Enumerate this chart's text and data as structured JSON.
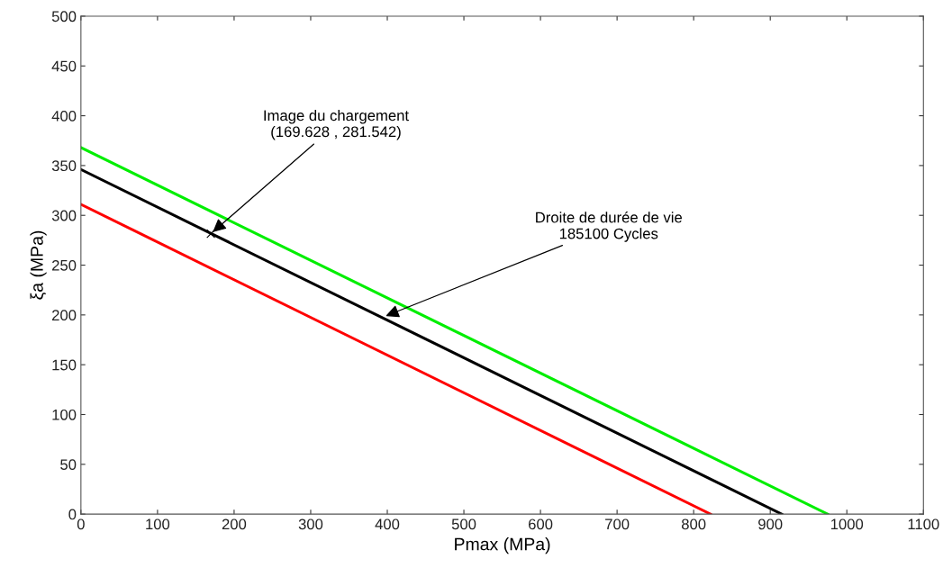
{
  "chart_data": {
    "type": "line",
    "xlabel": "Pmax (MPa)",
    "ylabel": "ξa (MPa)",
    "xlim": [
      0,
      1100
    ],
    "xticks": [
      0,
      100,
      200,
      300,
      400,
      500,
      600,
      700,
      800,
      900,
      1000,
      1100
    ],
    "ylim": [
      0,
      500
    ],
    "yticks": [
      0,
      50,
      100,
      150,
      200,
      250,
      300,
      350,
      400,
      450,
      500
    ],
    "grid": false,
    "legend": false,
    "series": [
      {
        "color": "#00ee00",
        "x": [
          0,
          975
        ],
        "values": [
          368,
          0
        ]
      },
      {
        "color": "#000000",
        "x": [
          0,
          915
        ],
        "values": [
          346,
          0
        ]
      },
      {
        "color": "#ff0000",
        "x": [
          0,
          822
        ],
        "values": [
          311,
          0
        ]
      },
      {
        "type": "scatter",
        "marker": "cross",
        "color": "#000000",
        "x": [
          169.628
        ],
        "values": [
          281.542
        ]
      }
    ],
    "annotations": [
      {
        "text": "Image du chargement\n(169.628 , 281.542)",
        "x": 169.628,
        "y": 281.542
      },
      {
        "text": "Droite de durée de vie\n185100 Cycles",
        "x": 395,
        "y": 198
      }
    ]
  }
}
